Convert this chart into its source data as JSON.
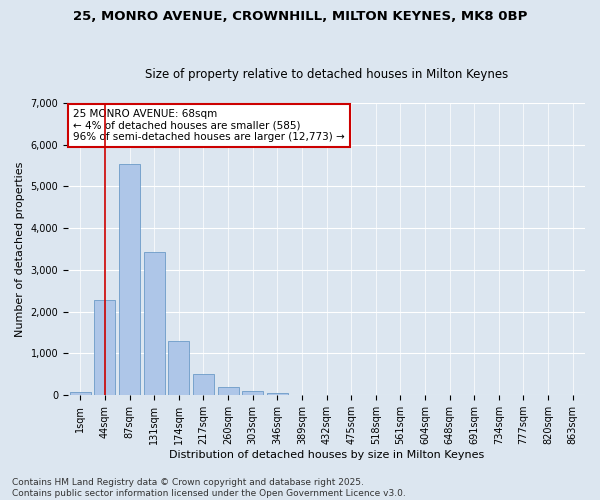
{
  "title_line1": "25, MONRO AVENUE, CROWNHILL, MILTON KEYNES, MK8 0BP",
  "title_line2": "Size of property relative to detached houses in Milton Keynes",
  "xlabel": "Distribution of detached houses by size in Milton Keynes",
  "ylabel": "Number of detached properties",
  "bar_labels": [
    "1sqm",
    "44sqm",
    "87sqm",
    "131sqm",
    "174sqm",
    "217sqm",
    "260sqm",
    "303sqm",
    "346sqm",
    "389sqm",
    "432sqm",
    "475sqm",
    "518sqm",
    "561sqm",
    "604sqm",
    "648sqm",
    "691sqm",
    "734sqm",
    "777sqm",
    "820sqm",
    "863sqm"
  ],
  "bar_values": [
    75,
    2280,
    5540,
    3440,
    1310,
    510,
    190,
    100,
    55,
    0,
    0,
    0,
    0,
    0,
    0,
    0,
    0,
    0,
    0,
    0,
    0
  ],
  "bar_color": "#aec6e8",
  "bar_edgecolor": "#5a8fc0",
  "vline_x": 1,
  "vline_color": "#cc0000",
  "annotation_text": "25 MONRO AVENUE: 68sqm\n← 4% of detached houses are smaller (585)\n96% of semi-detached houses are larger (12,773) →",
  "annotation_box_edgecolor": "#cc0000",
  "annotation_box_facecolor": "#ffffff",
  "ylim": [
    0,
    7000
  ],
  "yticks": [
    0,
    1000,
    2000,
    3000,
    4000,
    5000,
    6000,
    7000
  ],
  "background_color": "#dce6f0",
  "plot_bg_color": "#dce6f0",
  "footer_text": "Contains HM Land Registry data © Crown copyright and database right 2025.\nContains public sector information licensed under the Open Government Licence v3.0.",
  "title_fontsize": 9.5,
  "subtitle_fontsize": 8.5,
  "axis_label_fontsize": 8,
  "tick_fontsize": 7,
  "annotation_fontsize": 7.5,
  "footer_fontsize": 6.5
}
